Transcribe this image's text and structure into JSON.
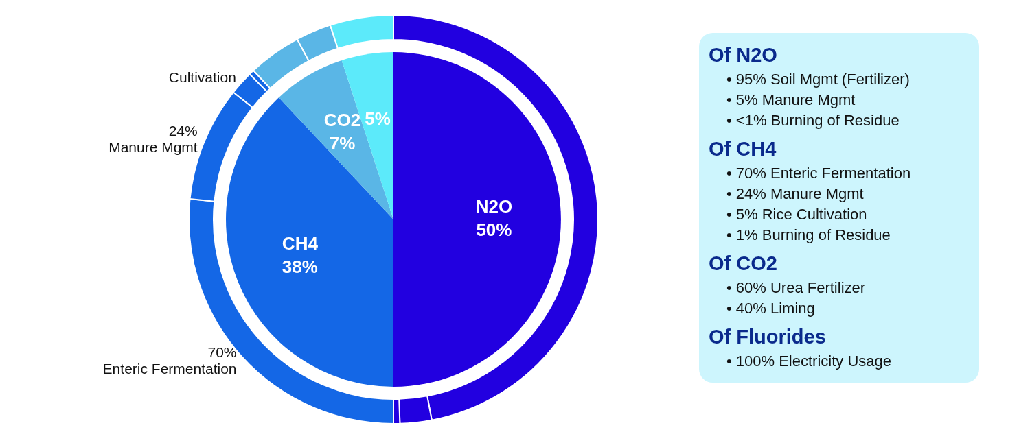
{
  "chart_data": [
    {
      "type": "pie",
      "categories": [
        "N2O",
        "CH4",
        "CO2",
        null
      ],
      "values": [
        50,
        38,
        7,
        5
      ],
      "value_labels": [
        "50%",
        "38%",
        "7%",
        "5%"
      ],
      "colors": [
        "#2200e0",
        "#1467e6",
        "#5ab6e6",
        "#5ceafa"
      ]
    },
    {
      "type": "donut",
      "categories": [
        null,
        null,
        null,
        "Enteric  Fermentation",
        "Manure Mgmt",
        "Cultivation",
        null,
        null,
        null,
        null
      ],
      "values": [
        47,
        2.5,
        0.5,
        26.6,
        9.1,
        1.9,
        0.4,
        4.2,
        2.8,
        5
      ],
      "colors": [
        "#2200e0",
        "#2200e0",
        "#2200e0",
        "#1467e6",
        "#1467e6",
        "#1467e6",
        "#1467e6",
        "#5ab6e6",
        "#5ab6e6",
        "#5ceafa"
      ],
      "annotations": [
        {
          "text": "70%",
          "x": "Enteric  Fermentation"
        },
        {
          "text": "24%",
          "x": "Manure Mgmt"
        }
      ]
    },
    {
      "type": "other",
      "title": "Of N2O",
      "annotations": [
        "• 95% Soil Mgmt (Fertilizer)",
        "• 5% Manure Mgmt",
        "• <1% Burning of Residue"
      ]
    },
    {
      "type": "other",
      "title": "Of CH4",
      "annotations": [
        "• 70% Enteric Fermentation",
        "• 24% Manure Mgmt",
        "• 5% Rice Cultivation",
        "• 1% Burning of Residue"
      ]
    },
    {
      "type": "other",
      "title": "Of CO2",
      "annotations": [
        "• 60% Urea Fertilizer",
        "• 40% Liming"
      ]
    },
    {
      "type": "other",
      "title": "Of Fluorides",
      "annotations": [
        "• 100% Electricity Usage"
      ]
    }
  ]
}
